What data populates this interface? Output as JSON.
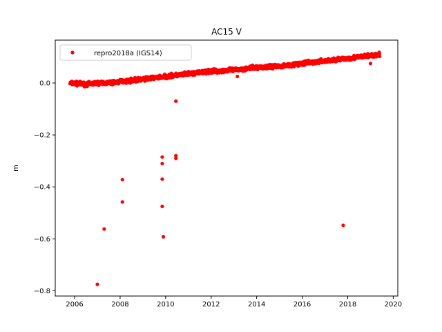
{
  "chart_data": {
    "type": "scatter",
    "title": "AC15 V",
    "xlabel": "",
    "ylabel": "m",
    "xlim": [
      2005.15,
      2020.2
    ],
    "ylim": [
      -0.82,
      0.165
    ],
    "x_ticks": [
      2006,
      2008,
      2010,
      2012,
      2014,
      2016,
      2018,
      2020
    ],
    "x_tick_labels": [
      "2006",
      "2008",
      "2010",
      "2012",
      "2014",
      "2016",
      "2018",
      "2020"
    ],
    "y_ticks": [
      0.0,
      -0.2,
      -0.4,
      -0.6,
      -0.8
    ],
    "y_tick_labels": [
      "0.0",
      "−0.2",
      "−0.4",
      "−0.6",
      "−0.8"
    ],
    "grid": false,
    "legend": {
      "position": "top-left",
      "entries": [
        "repro2018a (IGS14)"
      ]
    },
    "series": [
      {
        "name": "repro2018a (IGS14)",
        "color": "#ff0000",
        "marker": "circle",
        "trend": [
          {
            "x": 2005.8,
            "y": 0.0
          },
          {
            "x": 2006.5,
            "y": -0.005
          },
          {
            "x": 2007.0,
            "y": 0.0
          },
          {
            "x": 2007.5,
            "y": 0.0
          },
          {
            "x": 2008.0,
            "y": 0.005
          },
          {
            "x": 2009.0,
            "y": 0.015
          },
          {
            "x": 2010.0,
            "y": 0.025
          },
          {
            "x": 2011.0,
            "y": 0.035
          },
          {
            "x": 2012.0,
            "y": 0.045
          },
          {
            "x": 2013.0,
            "y": 0.05
          },
          {
            "x": 2014.0,
            "y": 0.06
          },
          {
            "x": 2015.0,
            "y": 0.065
          },
          {
            "x": 2016.0,
            "y": 0.075
          },
          {
            "x": 2017.0,
            "y": 0.085
          },
          {
            "x": 2018.0,
            "y": 0.095
          },
          {
            "x": 2019.0,
            "y": 0.105
          },
          {
            "x": 2019.4,
            "y": 0.108
          }
        ],
        "outliers": [
          {
            "x": 2007.0,
            "y": -0.775
          },
          {
            "x": 2007.3,
            "y": -0.562
          },
          {
            "x": 2008.1,
            "y": -0.372
          },
          {
            "x": 2008.1,
            "y": -0.458
          },
          {
            "x": 2009.85,
            "y": -0.285
          },
          {
            "x": 2009.85,
            "y": -0.31
          },
          {
            "x": 2009.85,
            "y": -0.37
          },
          {
            "x": 2009.85,
            "y": -0.475
          },
          {
            "x": 2009.9,
            "y": -0.592
          },
          {
            "x": 2010.45,
            "y": -0.07
          },
          {
            "x": 2010.45,
            "y": -0.28
          },
          {
            "x": 2010.45,
            "y": -0.29
          },
          {
            "x": 2013.15,
            "y": 0.025
          },
          {
            "x": 2017.8,
            "y": -0.548
          },
          {
            "x": 2019.0,
            "y": 0.075
          }
        ]
      }
    ]
  }
}
